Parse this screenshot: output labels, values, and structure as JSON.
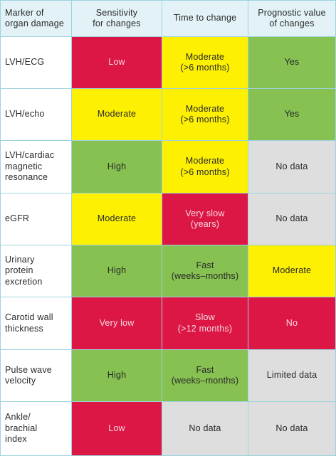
{
  "table": {
    "headers": [
      "Marker of\norgan damage",
      "Sensitivity\nfor changes",
      "Time to change",
      "Prognostic value\nof changes"
    ],
    "rows": [
      {
        "marker": "LVH/ECG",
        "cells": [
          {
            "text": "Low",
            "level": "red"
          },
          {
            "text": "Moderate\n(>6 months)",
            "level": "yellow"
          },
          {
            "text": "Yes",
            "level": "green"
          }
        ]
      },
      {
        "marker": "LVH/echo",
        "cells": [
          {
            "text": "Moderate",
            "level": "yellow"
          },
          {
            "text": "Moderate\n(>6 months)",
            "level": "yellow"
          },
          {
            "text": "Yes",
            "level": "green"
          }
        ]
      },
      {
        "marker": "LVH/cardiac\nmagnetic\nresonance",
        "cells": [
          {
            "text": "High",
            "level": "green"
          },
          {
            "text": "Moderate\n(>6 months)",
            "level": "yellow"
          },
          {
            "text": "No data",
            "level": "grey"
          }
        ]
      },
      {
        "marker": "eGFR",
        "cells": [
          {
            "text": "Moderate",
            "level": "yellow"
          },
          {
            "text": "Very slow\n(years)",
            "level": "red"
          },
          {
            "text": "No data",
            "level": "grey"
          }
        ]
      },
      {
        "marker": "Urinary\nprotein\nexcretion",
        "cells": [
          {
            "text": "High",
            "level": "green"
          },
          {
            "text": "Fast\n(weeks–months)",
            "level": "green"
          },
          {
            "text": "Moderate",
            "level": "yellow"
          }
        ]
      },
      {
        "marker": "Carotid wall\nthickness",
        "cells": [
          {
            "text": "Very low",
            "level": "red"
          },
          {
            "text": "Slow\n(>12 months)",
            "level": "red"
          },
          {
            "text": "No",
            "level": "red"
          }
        ]
      },
      {
        "marker": "Pulse wave\nvelocity",
        "cells": [
          {
            "text": "High",
            "level": "green"
          },
          {
            "text": "Fast\n(weeks–months)",
            "level": "green"
          },
          {
            "text": "Limited data",
            "level": "grey"
          }
        ]
      },
      {
        "marker": "Ankle/\nbrachial\nindex",
        "cells": [
          {
            "text": "Low",
            "level": "red"
          },
          {
            "text": "No data",
            "level": "grey"
          },
          {
            "text": "No data",
            "level": "grey"
          }
        ]
      }
    ]
  },
  "colors": {
    "red": "#dc1746",
    "yellow": "#fdf002",
    "green": "#86c151",
    "grey": "#dedede",
    "header": "#e2f2f6",
    "border": "#9ed3de"
  }
}
